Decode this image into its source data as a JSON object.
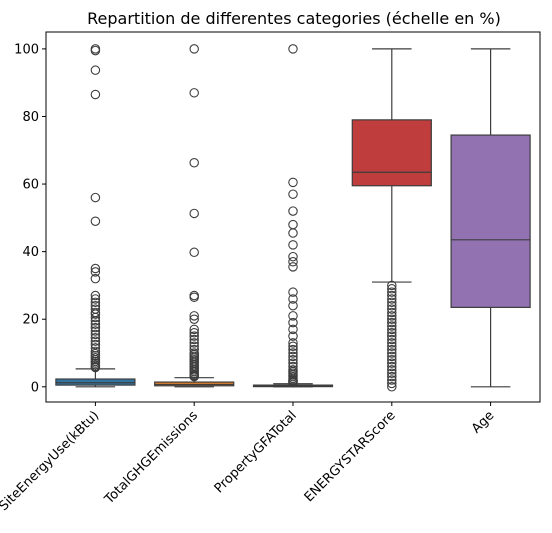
{
  "chart_data": {
    "type": "box",
    "title": "Repartition de differentes categories (échelle en %)",
    "xlabel": "",
    "ylabel": "",
    "ylim": [
      -4.5,
      105
    ],
    "yticks": [
      0,
      20,
      40,
      60,
      80,
      100
    ],
    "ytick_labels": [
      "0",
      "20",
      "40",
      "60",
      "80",
      "100"
    ],
    "categories": [
      "SiteEnergyUse(kBtu)",
      "TotalGHGEmissions",
      "PropertyGFATotal",
      "ENERGYSTARScore",
      "Age"
    ],
    "colors": [
      "#3274a1",
      "#e1812c",
      "#3a923a",
      "#c03d3e",
      "#9372b2"
    ],
    "boxes": [
      {
        "name": "SiteEnergyUse(kBtu)",
        "whisker_low": 0,
        "q1": 0.5,
        "median": 1.2,
        "q3": 2.3,
        "whisker_high": 5.3,
        "outliers": [
          100,
          99.5,
          93.7,
          86.5,
          56,
          49,
          35,
          34,
          32,
          27,
          26,
          25,
          24,
          23,
          22,
          21.5,
          20.5,
          19.5,
          18.5,
          17.5,
          16.5,
          15.5,
          14.5,
          13.5,
          12.5,
          11.5,
          10.5,
          9.8,
          9.2,
          8.6,
          8,
          7.5,
          7,
          6.5,
          6,
          5.7
        ]
      },
      {
        "name": "TotalGHGEmissions",
        "whisker_low": 0,
        "q1": 0.3,
        "median": 0.7,
        "q3": 1.4,
        "whisker_high": 2.7,
        "outliers": [
          100,
          87,
          66.3,
          51.3,
          39.8,
          27,
          26.5,
          21,
          20,
          17,
          16,
          15,
          14,
          13,
          12,
          11,
          10,
          9.5,
          9,
          8.5,
          8,
          7.5,
          7,
          6.5,
          6,
          5.5,
          5,
          4.5,
          4,
          3.5,
          3.2,
          3
        ]
      },
      {
        "name": "PropertyGFATotal",
        "whisker_low": 0,
        "q1": 0.05,
        "median": 0.2,
        "q3": 0.5,
        "whisker_high": 0.9,
        "outliers": [
          100,
          60.5,
          57,
          52,
          48,
          45.5,
          42,
          38.5,
          37,
          35.5,
          28,
          26,
          24,
          21,
          19,
          17,
          15,
          13,
          12,
          11,
          10,
          9,
          8,
          7,
          6,
          5,
          4.5,
          4,
          3.5,
          3,
          2.5,
          2,
          1.7,
          1.4,
          1.2
        ]
      },
      {
        "name": "ENERGYSTARScore",
        "whisker_low": 31,
        "q1": 59.5,
        "median": 63.5,
        "q3": 79,
        "whisker_high": 100,
        "outliers": [
          30,
          29,
          28,
          27,
          26,
          25,
          24,
          23,
          22,
          21,
          20,
          19,
          18,
          17,
          16,
          15,
          14,
          13,
          12,
          11,
          10,
          9,
          8,
          7,
          6,
          5,
          4,
          3,
          2,
          1,
          0
        ]
      },
      {
        "name": "Age",
        "whisker_low": 0,
        "q1": 23.5,
        "median": 43.5,
        "q3": 74.5,
        "whisker_high": 100,
        "outliers": []
      }
    ],
    "grid": false,
    "legend": "none"
  }
}
